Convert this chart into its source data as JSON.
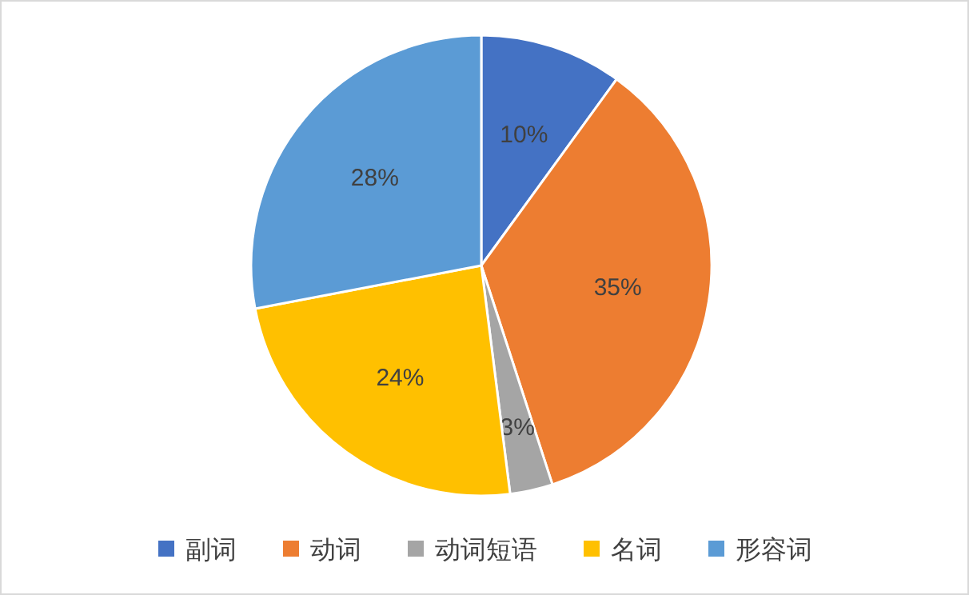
{
  "chart_data": {
    "type": "pie",
    "categories": [
      "副词",
      "动词",
      "动词短语",
      "名词",
      "形容词"
    ],
    "values": [
      10,
      35,
      3,
      24,
      28
    ],
    "colors": [
      "#4472c4",
      "#ed7d31",
      "#a5a5a5",
      "#ffc000",
      "#5b9bd5"
    ],
    "value_labels": [
      "10%",
      "35%",
      "3%",
      "24%",
      "28%"
    ],
    "legend": "bottom"
  }
}
